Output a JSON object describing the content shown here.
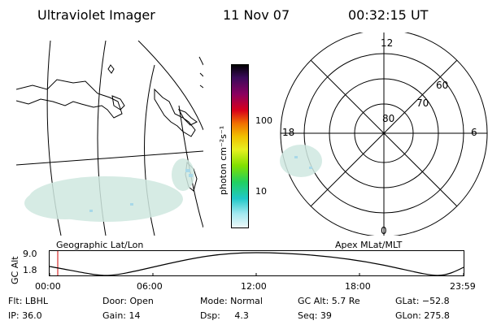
{
  "header": {
    "instrument": "Ultraviolet Imager",
    "date": "11 Nov 07",
    "time": "00:32:15 UT"
  },
  "colorbar": {
    "unit_label": "photon cm⁻²s⁻¹",
    "ticks": [
      "100",
      "10"
    ]
  },
  "polar_plot": {
    "ring_labels": [
      "80",
      "70",
      "60"
    ],
    "mlt_labels": [
      "12",
      "18",
      "6",
      "0"
    ]
  },
  "map_label": "Geographic Lat/Lon",
  "polar_label": "Apex MLat/MLT",
  "altitude_plot": {
    "ylabel": "GC Alt",
    "yticks": [
      "9.0",
      "1.8"
    ],
    "xticks": [
      "00:00",
      "06:00",
      "12:00",
      "18:00",
      "23:59"
    ]
  },
  "status": {
    "flt": "Flt: LBHL",
    "ip": "IP: 36.0",
    "door": "Door: Open",
    "gain": "Gain: 14",
    "mode": "Mode: Normal",
    "dsp": "Dsp:     4.3",
    "gcalt": "GC Alt: 5.7 Re",
    "seq": "Seq: 39",
    "glat": "GLat: −52.8",
    "glon": "GLon: 275.8"
  },
  "colors": {
    "background": "#ffffff",
    "lines": "#000000",
    "emission": "#cfe8e0",
    "time_marker": "#cc0000"
  }
}
